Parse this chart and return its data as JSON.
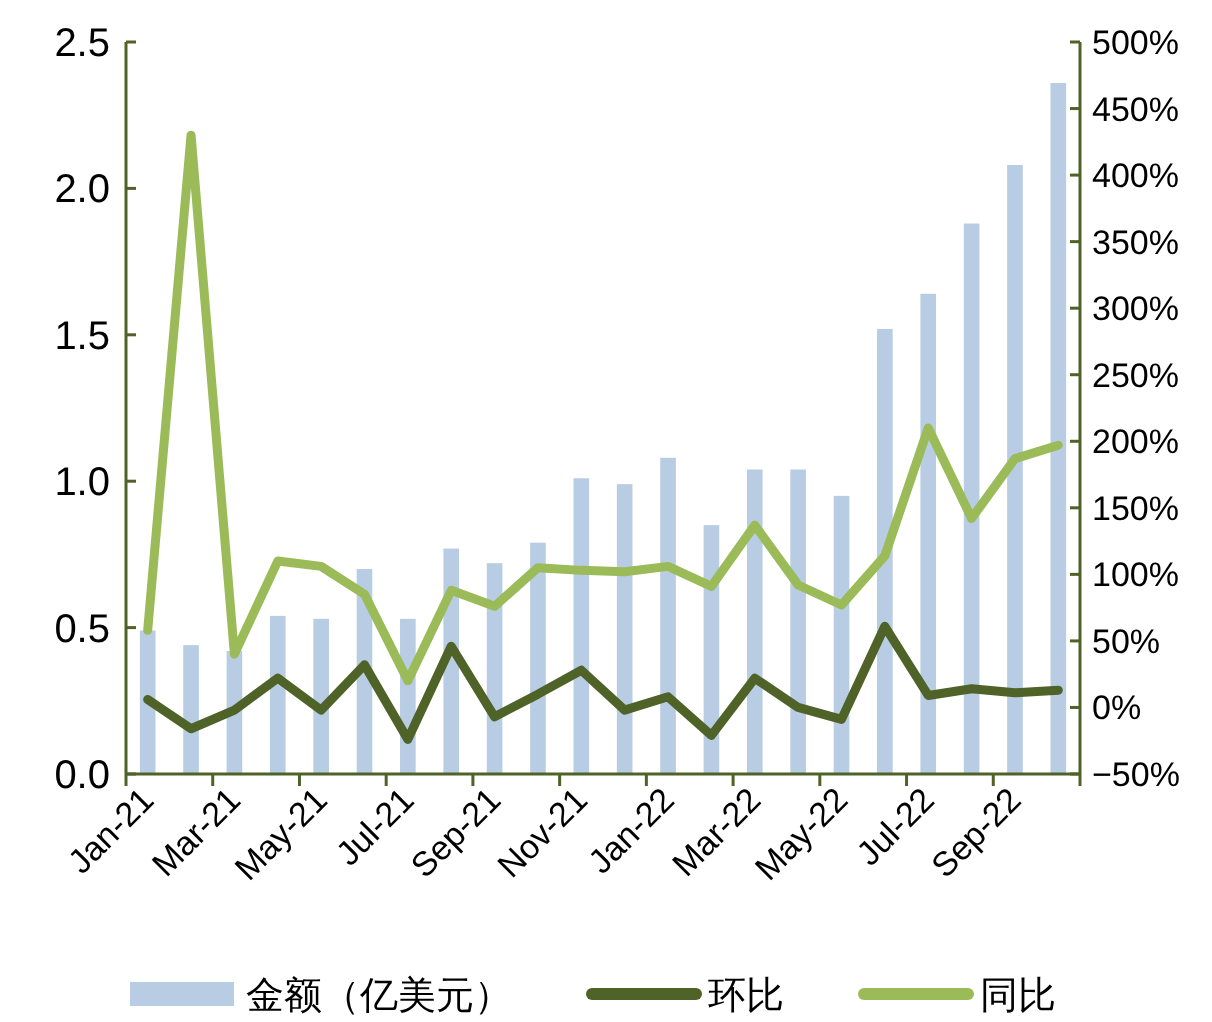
{
  "chart_data": {
    "type": "bar",
    "categories": [
      "Jan-21",
      null,
      "Mar-21",
      null,
      "May-21",
      null,
      "Jul-21",
      null,
      "Sep-21",
      null,
      "Nov-21",
      null,
      "Jan-22",
      null,
      "Mar-22",
      null,
      "May-22",
      null,
      "Jul-22",
      null,
      "Sep-22",
      null
    ],
    "series": [
      {
        "name": "金额（亿美元）",
        "color": "#b8cce4",
        "values": [
          0.49,
          0.44,
          0.42,
          0.54,
          0.53,
          0.7,
          0.53,
          0.77,
          0.72,
          0.79,
          1.01,
          0.99,
          1.08,
          0.85,
          1.04,
          1.04,
          0.95,
          1.52,
          1.64,
          1.88,
          2.08,
          2.36
        ]
      },
      {
        "name": "环比",
        "type": "line",
        "axis": "y2",
        "color": "#4f6228",
        "values": [
          6,
          -16,
          -2,
          22,
          -2,
          32,
          -24,
          46,
          -7,
          10,
          28,
          -2,
          8,
          -21,
          22,
          0,
          -9,
          61,
          9,
          14,
          11,
          13
        ]
      },
      {
        "name": "同比",
        "type": "line",
        "axis": "y2",
        "color": "#9bbb59",
        "values": [
          58,
          430,
          40,
          110,
          106,
          85,
          20,
          88,
          76,
          105,
          103,
          102,
          106,
          91,
          137,
          92,
          77,
          114,
          210,
          142,
          187,
          197
        ]
      }
    ],
    "ylim": [
      0,
      2.5
    ],
    "yticks": [
      {
        "value": 0,
        "label": "0.0"
      },
      {
        "value": 0.5,
        "label": "0.5"
      },
      {
        "value": 1,
        "label": "1.0"
      },
      {
        "value": 1.5,
        "label": "1.5"
      },
      {
        "value": 2,
        "label": "2.0"
      },
      {
        "value": 2.5,
        "label": "2.5"
      }
    ],
    "y2lim": [
      -50,
      500
    ],
    "y2ticks": [
      {
        "value": -50,
        "label": "−50%"
      },
      {
        "value": 0,
        "label": "0%"
      },
      {
        "value": 50,
        "label": "50%"
      },
      {
        "value": 100,
        "label": "100%"
      },
      {
        "value": 150,
        "label": "150%"
      },
      {
        "value": 200,
        "label": "200%"
      },
      {
        "value": 250,
        "label": "250%"
      },
      {
        "value": 300,
        "label": "300%"
      },
      {
        "value": 350,
        "label": "350%"
      },
      {
        "value": 400,
        "label": "400%"
      },
      {
        "value": 450,
        "label": "450%"
      },
      {
        "value": 500,
        "label": "500%"
      }
    ],
    "legend": "bottom"
  }
}
